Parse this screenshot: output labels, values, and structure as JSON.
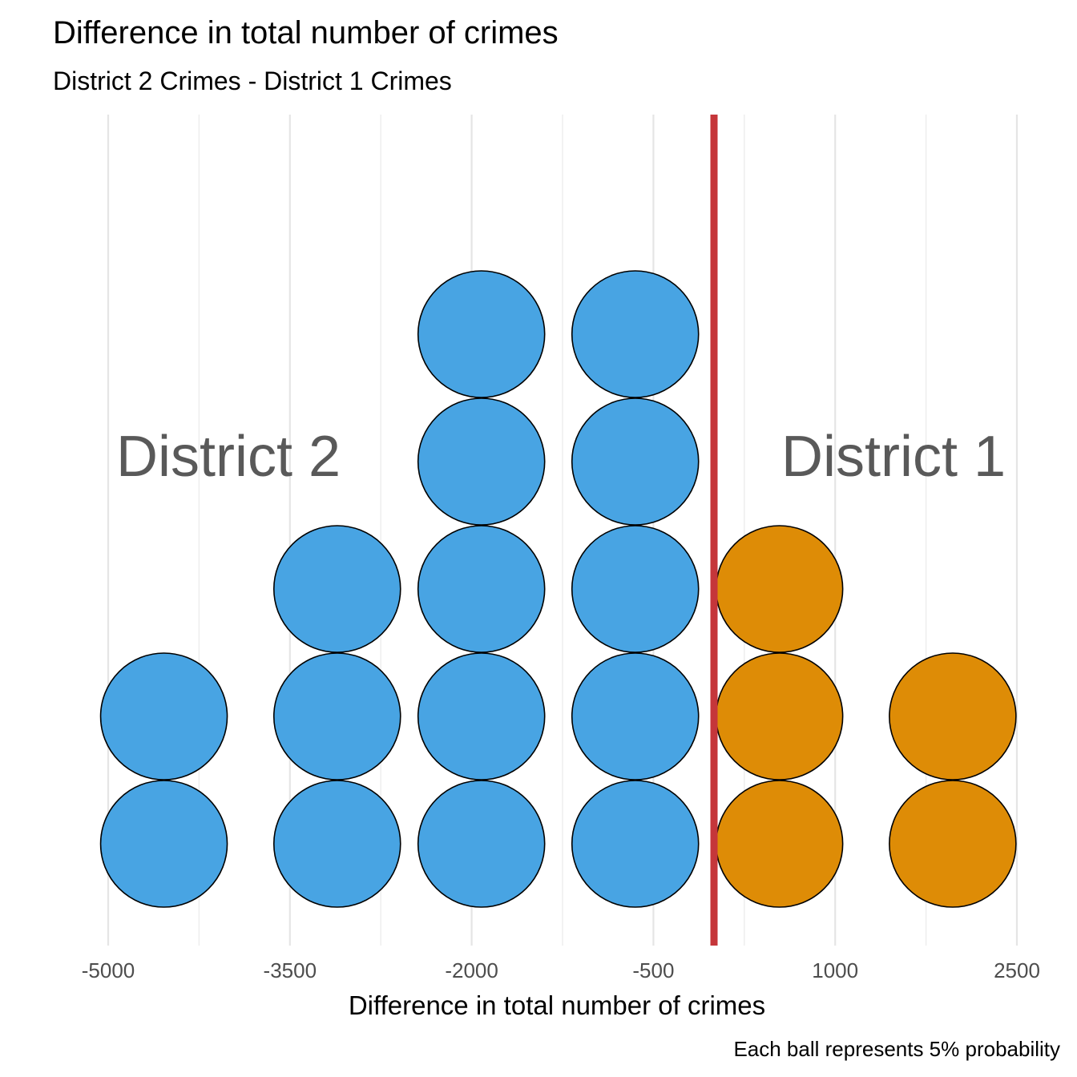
{
  "chart_data": {
    "type": "dotplot",
    "title": "Difference in total number of crimes",
    "subtitle": "District 2 Crimes - District 1 Crimes",
    "xlabel": "Difference in total number of crimes",
    "caption": "Each ball represents 5% probability",
    "xlim": [
      -5000,
      2500
    ],
    "x_ticks": [
      "-5000",
      "-3500",
      "-2000",
      "-500",
      "1000",
      "2500"
    ],
    "x_tick_values": [
      -5000,
      -3500,
      -2000,
      -500,
      1000,
      2500
    ],
    "x_minor_tick_values": [
      -4250,
      -2750,
      -1250,
      250,
      1750
    ],
    "threshold": 0,
    "threshold_color": "#c5363a",
    "region_labels": {
      "left": "District 2",
      "right": "District 1"
    },
    "colors": {
      "below_threshold": "#48a4e3",
      "above_threshold": "#de8c06"
    },
    "columns": [
      {
        "x": -4540,
        "count": 2
      },
      {
        "x": -3110,
        "count": 3
      },
      {
        "x": -1920,
        "count": 5
      },
      {
        "x": -650,
        "count": 5
      },
      {
        "x": 540,
        "count": 3
      },
      {
        "x": 1970,
        "count": 2
      }
    ]
  }
}
